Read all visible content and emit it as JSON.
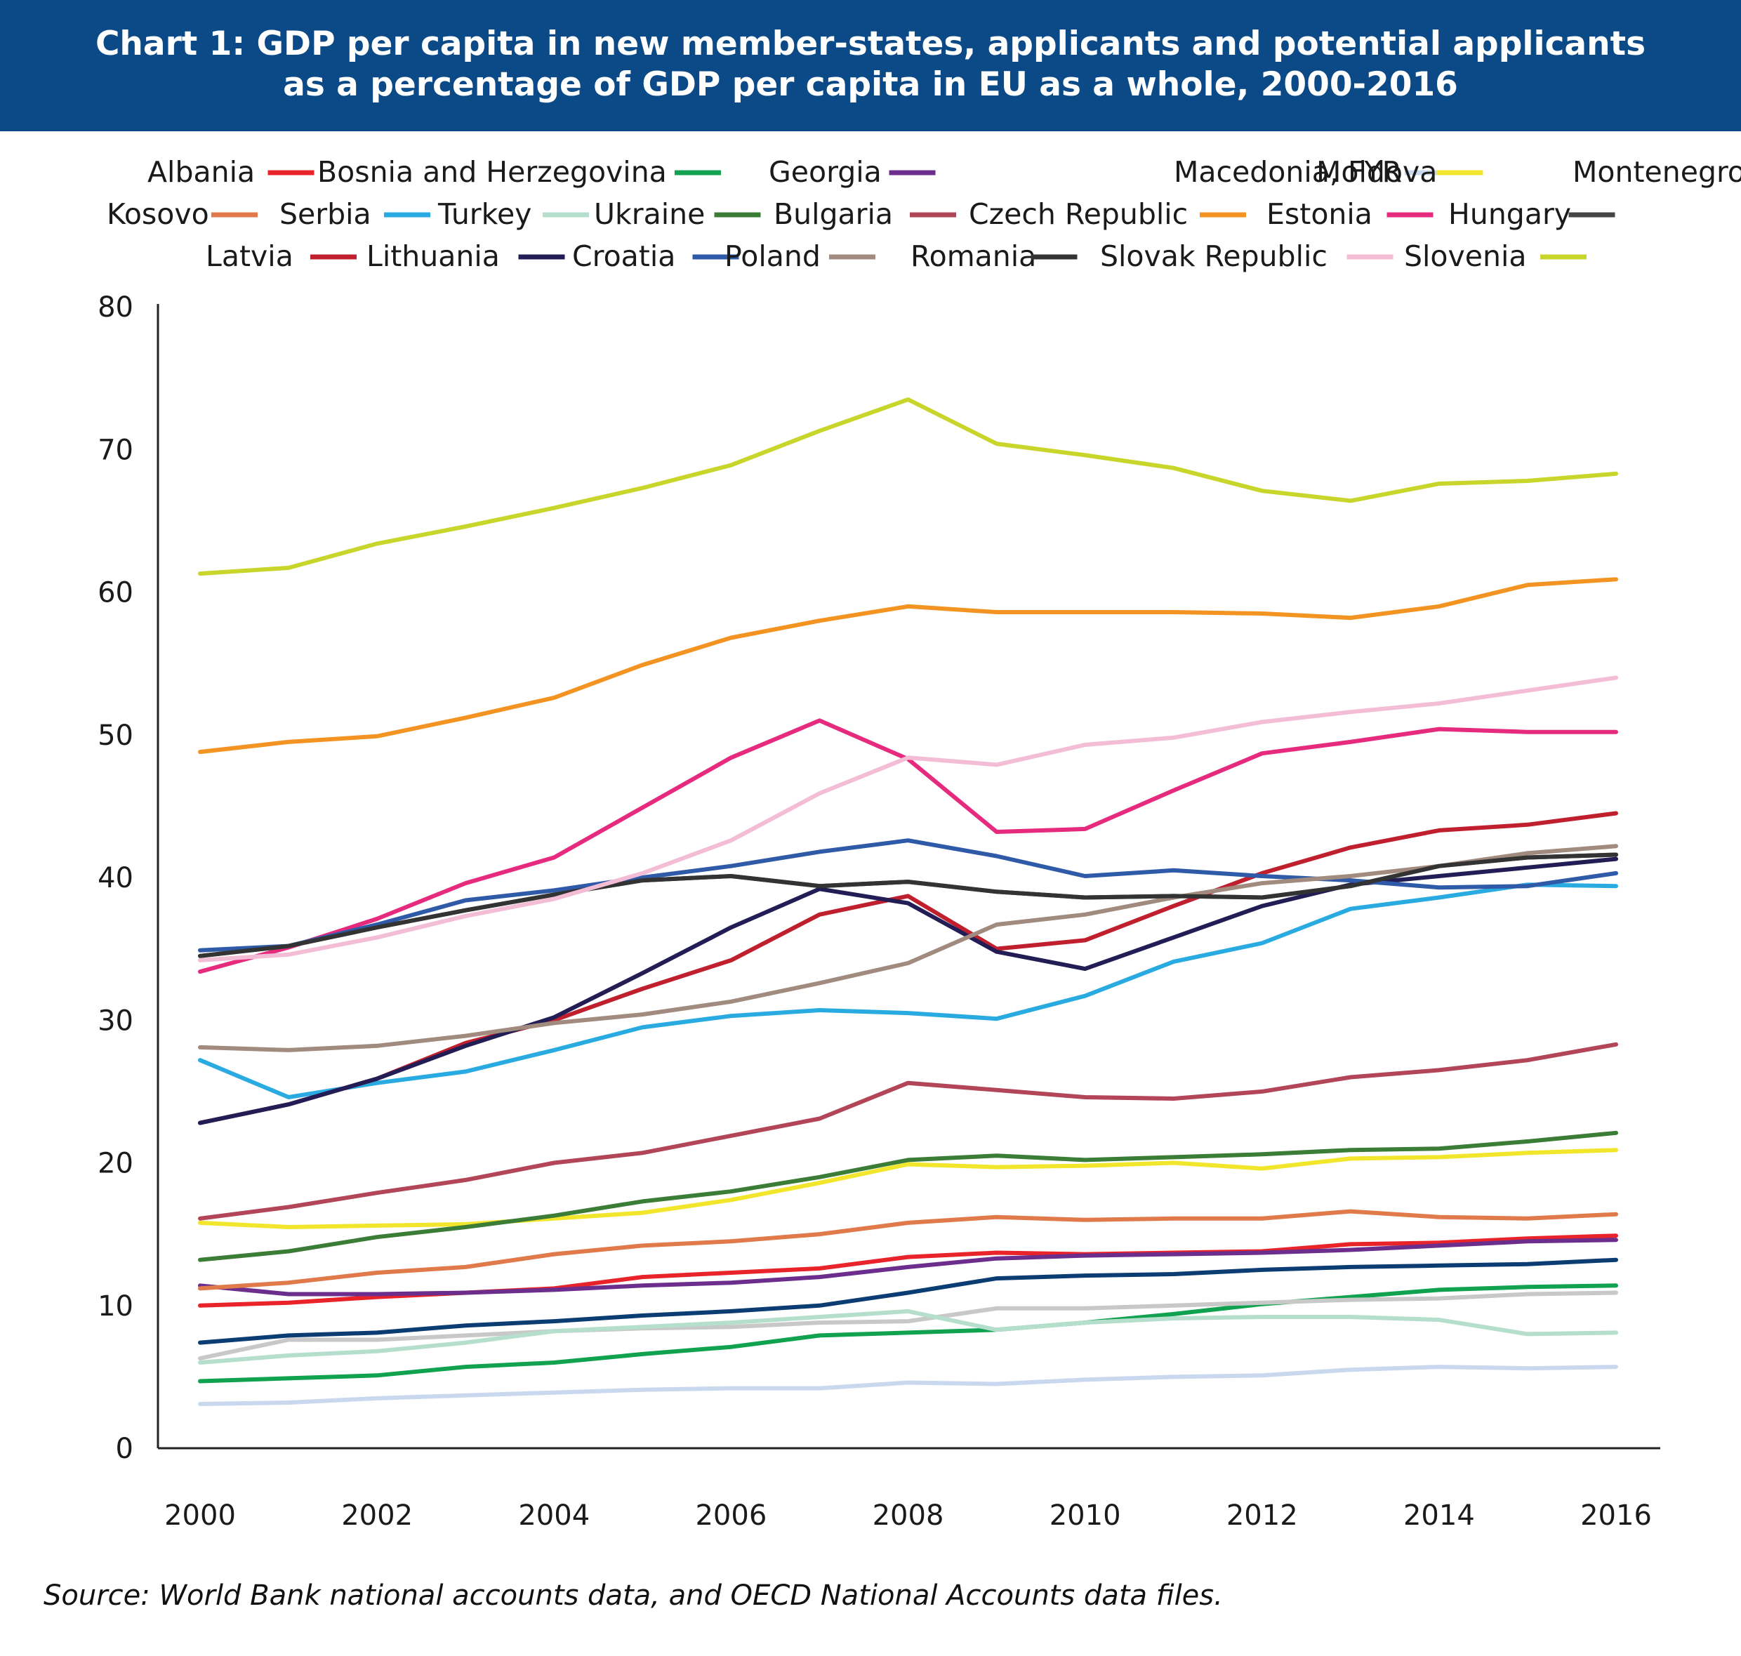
{
  "title_line1": "Chart 1: GDP per capita in new member-states, applicants and potential applicants",
  "title_line2": "as a percentage of GDP per capita in EU as a whole, 2000-2016",
  "source": "Source: World Bank national accounts data, and OECD National Accounts data files.",
  "chart_data": {
    "type": "line",
    "title": "Chart 1: GDP per capita in new member-states, applicants and potential applicants as a percentage of GDP per capita in EU as a whole, 2000-2016",
    "xlabel": "",
    "ylabel": "",
    "x": [
      2000,
      2001,
      2002,
      2003,
      2004,
      2005,
      2006,
      2007,
      2008,
      2009,
      2010,
      2011,
      2012,
      2013,
      2014,
      2015,
      2016
    ],
    "x_ticks": [
      "2000",
      "2002",
      "2004",
      "2006",
      "2008",
      "2010",
      "2012",
      "2014",
      "2016"
    ],
    "x_tick_values": [
      2000,
      2002,
      2004,
      2006,
      2008,
      2010,
      2012,
      2014,
      2016
    ],
    "ylim": [
      0,
      80
    ],
    "y_ticks": [
      "0",
      "10",
      "20",
      "30",
      "40",
      "50",
      "60",
      "70",
      "80"
    ],
    "y_tick_values": [
      0,
      10,
      20,
      30,
      40,
      50,
      60,
      70,
      80
    ],
    "grid": false,
    "legend_position": "top",
    "series": [
      {
        "name": "Albania",
        "color": "#0b3d73",
        "values": [
          7.4,
          7.9,
          8.1,
          8.6,
          8.9,
          9.3,
          9.6,
          10.0,
          10.9,
          11.9,
          12.1,
          12.2,
          12.5,
          12.7,
          12.8,
          12.9,
          13.2
        ]
      },
      {
        "name": "Bosnia and Herzegovina",
        "color": "#e8232a",
        "values": [
          10.0,
          10.2,
          10.6,
          10.9,
          11.2,
          12.0,
          12.3,
          12.6,
          13.4,
          13.7,
          13.6,
          13.7,
          13.8,
          14.3,
          14.4,
          14.7,
          14.9
        ]
      },
      {
        "name": "Georgia",
        "color": "#10a24e",
        "values": [
          4.7,
          4.9,
          5.1,
          5.7,
          6.0,
          6.6,
          7.1,
          7.9,
          8.1,
          8.3,
          8.8,
          9.4,
          10.1,
          10.6,
          11.1,
          11.3,
          11.4
        ]
      },
      {
        "name": "Macedonia, FYR",
        "color": "#6b2e8c",
        "values": [
          11.4,
          10.8,
          10.8,
          10.9,
          11.1,
          11.4,
          11.6,
          12.0,
          12.7,
          13.3,
          13.5,
          13.6,
          13.7,
          13.9,
          14.2,
          14.5,
          14.6
        ]
      },
      {
        "name": "Moldova",
        "color": "#c9d8ef",
        "values": [
          3.1,
          3.2,
          3.5,
          3.7,
          3.9,
          4.1,
          4.2,
          4.2,
          4.6,
          4.5,
          4.8,
          5.0,
          5.1,
          5.5,
          5.7,
          5.6,
          5.7
        ]
      },
      {
        "name": "Montenegro",
        "color": "#f2e62d",
        "values": [
          15.8,
          15.5,
          15.6,
          15.7,
          16.1,
          16.5,
          17.4,
          18.6,
          19.9,
          19.7,
          19.8,
          20.0,
          19.6,
          20.3,
          20.4,
          20.7,
          20.9
        ]
      },
      {
        "name": "Kosovo",
        "color": "#c8c8c8",
        "values": [
          6.3,
          7.6,
          7.6,
          7.9,
          8.2,
          8.4,
          8.5,
          8.8,
          8.9,
          9.8,
          9.8,
          10.0,
          10.2,
          10.4,
          10.5,
          10.8,
          10.9
        ]
      },
      {
        "name": "Serbia",
        "color": "#e07a4b",
        "values": [
          11.2,
          11.6,
          12.3,
          12.7,
          13.6,
          14.2,
          14.5,
          15.0,
          15.8,
          16.2,
          16.0,
          16.1,
          16.1,
          16.6,
          16.2,
          16.1,
          16.4
        ]
      },
      {
        "name": "Turkey",
        "color": "#29abe2",
        "values": [
          27.2,
          24.6,
          25.6,
          26.4,
          27.9,
          29.5,
          30.3,
          30.7,
          30.5,
          30.1,
          31.7,
          34.1,
          35.4,
          37.8,
          38.6,
          39.5,
          39.4
        ]
      },
      {
        "name": "Ukraine",
        "color": "#b5dfcc",
        "values": [
          6.0,
          6.5,
          6.8,
          7.4,
          8.2,
          8.5,
          8.8,
          9.2,
          9.6,
          8.3,
          8.8,
          9.1,
          9.2,
          9.2,
          9.0,
          8.0,
          8.1
        ]
      },
      {
        "name": "Bulgaria",
        "color": "#3b7d36",
        "values": [
          13.2,
          13.8,
          14.8,
          15.5,
          16.3,
          17.3,
          18.0,
          19.0,
          20.2,
          20.5,
          20.2,
          20.4,
          20.6,
          20.9,
          21.0,
          21.5,
          22.1
        ]
      },
      {
        "name": "Czech Republic",
        "color": "#b24557",
        "values": [
          16.1,
          16.9,
          17.9,
          18.8,
          20.0,
          20.7,
          21.9,
          23.1,
          25.6,
          25.1,
          24.6,
          24.5,
          25.0,
          26.0,
          26.5,
          27.2,
          28.3
        ]
      },
      {
        "name": "Estonia",
        "color": "#f39322",
        "values": [
          48.8,
          49.5,
          49.9,
          51.2,
          52.6,
          54.9,
          56.8,
          58.0,
          59.0,
          58.6,
          58.6,
          58.6,
          58.5,
          58.2,
          59.0,
          60.5,
          60.9
        ]
      },
      {
        "name": "Hungary",
        "color": "#e62a7e",
        "values": [
          33.4,
          35.1,
          37.1,
          39.6,
          41.4,
          44.9,
          48.4,
          51.0,
          48.3,
          43.2,
          43.4,
          46.1,
          48.7,
          49.5,
          50.4,
          50.2,
          50.2
        ]
      },
      {
        "name": "Latvia",
        "color": "#454545",
        "values": [
          34.5,
          35.2,
          36.5,
          37.7,
          38.8,
          39.8,
          40.1,
          39.4,
          39.7,
          39.0,
          38.6,
          38.7,
          38.6,
          39.4,
          40.8,
          41.4,
          41.6
        ]
      },
      {
        "name": "Lithuania",
        "color": "#c0202e",
        "values": [
          22.8,
          24.1,
          25.9,
          28.4,
          30.0,
          32.2,
          34.2,
          37.4,
          38.7,
          35.0,
          35.6,
          38.0,
          40.3,
          42.1,
          43.3,
          43.7,
          44.5
        ]
      },
      {
        "name": "Croatia",
        "color": "#231d55",
        "values": [
          22.8,
          24.1,
          25.9,
          28.2,
          30.2,
          33.3,
          36.5,
          39.2,
          38.2,
          34.8,
          33.6,
          35.8,
          38.0,
          39.5,
          40.1,
          40.7,
          41.3
        ]
      },
      {
        "name": "Poland",
        "color": "#2e5aa8",
        "values": [
          34.9,
          35.2,
          36.7,
          38.4,
          39.1,
          40.0,
          40.8,
          41.8,
          42.6,
          41.5,
          40.1,
          40.5,
          40.1,
          39.8,
          39.3,
          39.4,
          40.3
        ]
      },
      {
        "name": "Romania",
        "color": "#a08b7e",
        "values": [
          28.1,
          27.9,
          28.2,
          28.9,
          29.8,
          30.4,
          31.3,
          32.6,
          34.0,
          36.7,
          37.4,
          38.6,
          39.6,
          40.1,
          40.8,
          41.7,
          42.2
        ]
      },
      {
        "name": "Slovak Republic",
        "color": "#333333",
        "values": [
          34.5,
          35.2,
          36.5,
          37.7,
          38.8,
          39.8,
          40.1,
          39.4,
          39.7,
          39.0,
          38.6,
          38.7,
          38.6,
          39.4,
          40.8,
          41.4,
          41.6
        ]
      },
      {
        "name": "Slovenia",
        "color": "#f4bdd6",
        "values": [
          34.2,
          34.6,
          35.8,
          37.3,
          38.5,
          40.3,
          42.6,
          45.9,
          48.4,
          47.9,
          49.3,
          49.8,
          50.9,
          51.6,
          52.2,
          53.1,
          54.0
        ]
      },
      {
        "name": "",
        "color": "#c8d52a",
        "values": [
          61.3,
          61.7,
          63.4,
          64.6,
          65.9,
          67.3,
          68.9,
          71.3,
          73.5,
          70.4,
          69.6,
          68.7,
          67.1,
          66.4,
          67.6,
          67.8,
          68.3
        ]
      }
    ]
  }
}
